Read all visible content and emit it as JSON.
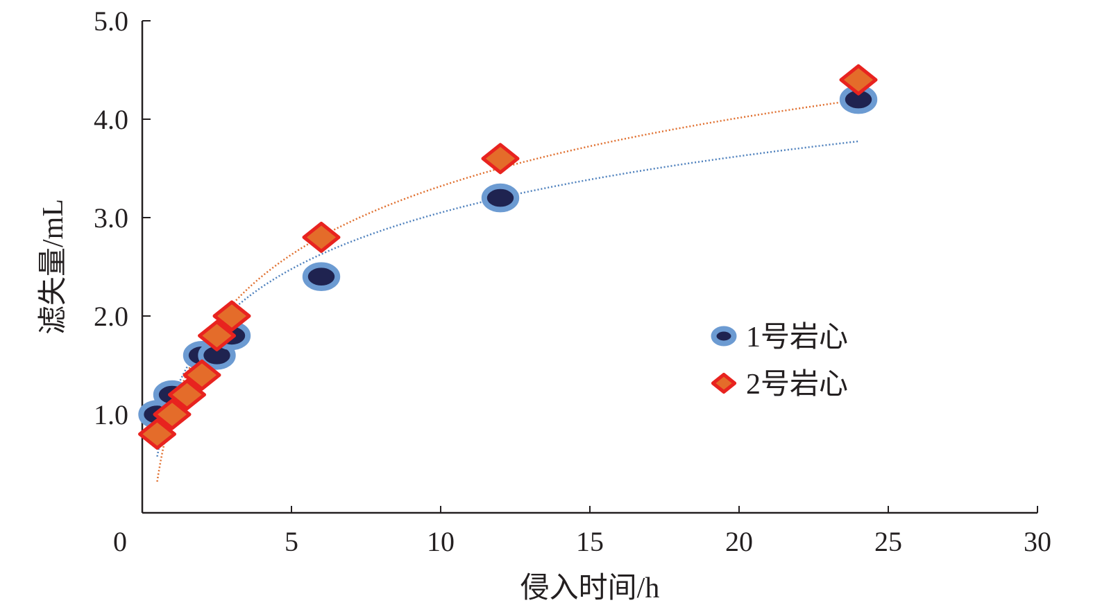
{
  "chart_data": {
    "type": "scatter",
    "xlabel": "侵入时间/h",
    "ylabel": "滤失量/mL",
    "xlim": [
      0,
      30
    ],
    "ylim": [
      0,
      5
    ],
    "xticks": [
      "0",
      "5",
      "10",
      "15",
      "20",
      "25",
      "30"
    ],
    "yticks": [
      "1.0",
      "2.0",
      "3.0",
      "4.0",
      "5.0"
    ],
    "grid": false,
    "legend_position": "right-center",
    "series": [
      {
        "name": "1号岩心",
        "marker": "circle",
        "color": "#1f2350",
        "edge_color": "#6c9bd2",
        "trendline": "logarithmic",
        "trend_color": "#4f81bd",
        "points": [
          {
            "x": 0.5,
            "y": 1.0
          },
          {
            "x": 1.0,
            "y": 1.2
          },
          {
            "x": 2.0,
            "y": 1.6
          },
          {
            "x": 2.5,
            "y": 1.6
          },
          {
            "x": 3.0,
            "y": 1.8
          },
          {
            "x": 6.0,
            "y": 2.4
          },
          {
            "x": 12.0,
            "y": 3.2
          },
          {
            "x": 24.0,
            "y": 4.2
          }
        ]
      },
      {
        "name": "2号岩心",
        "marker": "diamond",
        "color": "#e46c2a",
        "edge_color": "#e8231f",
        "trendline": "logarithmic",
        "trend_color": "#e07030",
        "points": [
          {
            "x": 0.5,
            "y": 0.8
          },
          {
            "x": 1.0,
            "y": 1.0
          },
          {
            "x": 1.5,
            "y": 1.2
          },
          {
            "x": 2.0,
            "y": 1.4
          },
          {
            "x": 2.5,
            "y": 1.8
          },
          {
            "x": 3.0,
            "y": 2.0
          },
          {
            "x": 6.0,
            "y": 2.8
          },
          {
            "x": 12.0,
            "y": 3.6
          },
          {
            "x": 24.0,
            "y": 4.4
          }
        ]
      }
    ]
  }
}
